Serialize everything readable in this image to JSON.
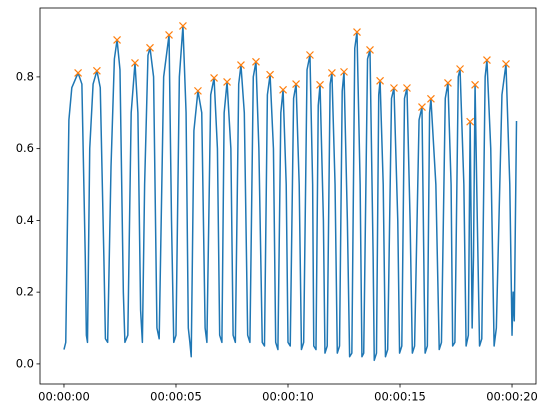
{
  "chart_data": {
    "type": "line",
    "xlim": [
      -1.07,
      21.07
    ],
    "xticks": [
      {
        "value": 0,
        "label": "00:00:00"
      },
      {
        "value": 5,
        "label": "00:00:05"
      },
      {
        "value": 10,
        "label": "00:00:10"
      },
      {
        "value": 15,
        "label": "00:00:15"
      },
      {
        "value": 20,
        "label": "00:00:20"
      }
    ],
    "ylim": [
      -0.056,
      0.992
    ],
    "yticks": [
      {
        "value": 0,
        "label": "0.0"
      },
      0.2,
      0.4,
      0.6,
      0.8
    ],
    "grid": false,
    "series": [
      {
        "color": "#1f77b4",
        "marker": "none",
        "x": [
          0.0,
          0.08,
          0.22,
          0.35,
          0.63,
          0.8,
          0.95,
          1.0,
          1.05,
          1.15,
          1.3,
          1.47,
          1.62,
          1.78,
          1.85,
          1.95,
          2.1,
          2.25,
          2.37,
          2.5,
          2.65,
          2.72,
          2.85,
          3.0,
          3.17,
          3.3,
          3.42,
          3.5,
          3.6,
          3.75,
          3.84,
          4.0,
          4.15,
          4.25,
          4.45,
          4.69,
          4.8,
          4.9,
          5.0,
          5.15,
          5.31,
          5.45,
          5.55,
          5.62,
          5.68,
          5.8,
          5.98,
          6.15,
          6.3,
          6.38,
          6.55,
          6.7,
          6.85,
          6.95,
          7.05,
          7.15,
          7.28,
          7.45,
          7.55,
          7.65,
          7.8,
          7.9,
          8.05,
          8.2,
          8.3,
          8.45,
          8.57,
          8.7,
          8.85,
          8.95,
          9.08,
          9.2,
          9.35,
          9.45,
          9.55,
          9.68,
          9.78,
          9.92,
          10.0,
          10.1,
          10.25,
          10.36,
          10.5,
          10.6,
          10.7,
          10.85,
          10.98,
          11.1,
          11.15,
          11.25,
          11.35,
          11.43,
          11.58,
          11.65,
          11.75,
          11.88,
          11.96,
          12.1,
          12.2,
          12.3,
          12.42,
          12.5,
          12.65,
          12.75,
          12.85,
          12.98,
          13.08,
          13.22,
          13.3,
          13.38,
          13.55,
          13.66,
          13.8,
          13.85,
          13.95,
          14.05,
          14.11,
          14.25,
          14.35,
          14.45,
          14.62,
          14.73,
          14.9,
          14.98,
          15.08,
          15.2,
          15.31,
          15.45,
          15.55,
          15.65,
          15.85,
          15.98,
          16.08,
          16.12,
          16.22,
          16.32,
          16.38,
          16.6,
          16.75,
          16.85,
          17.02,
          17.14,
          17.28,
          17.35,
          17.45,
          17.6,
          17.68,
          17.85,
          17.95,
          18.05,
          18.13,
          18.22,
          18.28,
          18.35,
          18.45,
          18.55,
          18.65,
          18.8,
          18.88,
          19.05,
          19.2,
          19.3,
          19.55,
          19.73,
          19.9,
          20.0,
          20.05,
          20.1,
          20.2
        ],
        "values": [
          0.04,
          0.06,
          0.68,
          0.77,
          0.811,
          0.78,
          0.3,
          0.08,
          0.06,
          0.6,
          0.78,
          0.817,
          0.77,
          0.3,
          0.07,
          0.06,
          0.55,
          0.85,
          0.903,
          0.82,
          0.2,
          0.06,
          0.08,
          0.7,
          0.839,
          0.7,
          0.15,
          0.06,
          0.5,
          0.86,
          0.881,
          0.8,
          0.1,
          0.07,
          0.8,
          0.917,
          0.4,
          0.06,
          0.08,
          0.8,
          0.942,
          0.7,
          0.1,
          0.06,
          0.02,
          0.65,
          0.761,
          0.7,
          0.1,
          0.06,
          0.75,
          0.797,
          0.6,
          0.08,
          0.06,
          0.7,
          0.786,
          0.6,
          0.08,
          0.06,
          0.78,
          0.833,
          0.7,
          0.08,
          0.06,
          0.8,
          0.842,
          0.6,
          0.06,
          0.05,
          0.75,
          0.806,
          0.6,
          0.06,
          0.04,
          0.7,
          0.764,
          0.5,
          0.06,
          0.05,
          0.74,
          0.78,
          0.5,
          0.04,
          0.06,
          0.82,
          0.861,
          0.5,
          0.05,
          0.04,
          0.72,
          0.778,
          0.4,
          0.03,
          0.05,
          0.78,
          0.811,
          0.5,
          0.03,
          0.05,
          0.76,
          0.814,
          0.4,
          0.02,
          0.03,
          0.88,
          0.925,
          0.5,
          0.02,
          0.03,
          0.85,
          0.875,
          0.3,
          0.01,
          0.03,
          0.75,
          0.789,
          0.5,
          0.02,
          0.04,
          0.74,
          0.769,
          0.4,
          0.03,
          0.05,
          0.74,
          0.769,
          0.4,
          0.03,
          0.05,
          0.68,
          0.716,
          0.2,
          0.03,
          0.05,
          0.7,
          0.739,
          0.5,
          0.04,
          0.06,
          0.74,
          0.783,
          0.5,
          0.05,
          0.06,
          0.8,
          0.822,
          0.5,
          0.05,
          0.08,
          0.675,
          0.1,
          0.3,
          0.778,
          0.4,
          0.05,
          0.07,
          0.8,
          0.847,
          0.6,
          0.05,
          0.1,
          0.75,
          0.836,
          0.5,
          0.08,
          0.2,
          0.12,
          0.677
        ]
      },
      {
        "color": "#ff7f0e",
        "marker": "x",
        "x": [
          0.63,
          1.47,
          2.37,
          3.17,
          3.84,
          4.69,
          5.31,
          5.98,
          6.7,
          7.28,
          7.9,
          8.57,
          9.2,
          9.78,
          10.36,
          10.98,
          11.43,
          11.96,
          12.5,
          13.08,
          13.66,
          14.11,
          14.73,
          15.31,
          15.98,
          16.38,
          17.14,
          17.68,
          18.13,
          18.35,
          18.88,
          19.73
        ],
        "values": [
          0.811,
          0.817,
          0.903,
          0.839,
          0.881,
          0.917,
          0.942,
          0.761,
          0.797,
          0.786,
          0.833,
          0.842,
          0.806,
          0.764,
          0.78,
          0.861,
          0.778,
          0.811,
          0.814,
          0.925,
          0.875,
          0.789,
          0.769,
          0.769,
          0.716,
          0.739,
          0.783,
          0.822,
          0.675,
          0.778,
          0.847,
          0.836
        ]
      }
    ]
  }
}
